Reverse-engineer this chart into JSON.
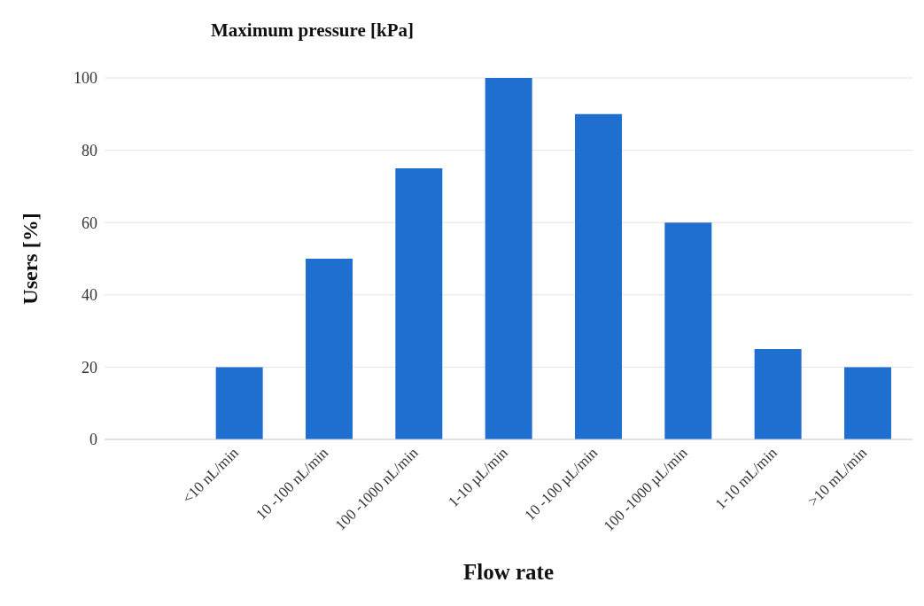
{
  "chart_data": {
    "type": "bar",
    "title": "Maximum pressure [kPa]",
    "xlabel": "Flow rate",
    "ylabel": "Users [%]",
    "categories": [
      null,
      "<10 nL/min",
      "10 -100 nL/min",
      "100 -1000 nL/min",
      "1-10 µL/min",
      "10 -100 µL/min",
      "100 -1000 µL/min",
      "1-10 mL/min",
      ">10 mL/min"
    ],
    "values": [
      null,
      20,
      50,
      75,
      100,
      90,
      60,
      25,
      20
    ],
    "color": "#1f6fd1",
    "ylim": [
      0,
      100
    ],
    "yticks": [
      0,
      20,
      40,
      60,
      80,
      100
    ],
    "grid": "y"
  }
}
